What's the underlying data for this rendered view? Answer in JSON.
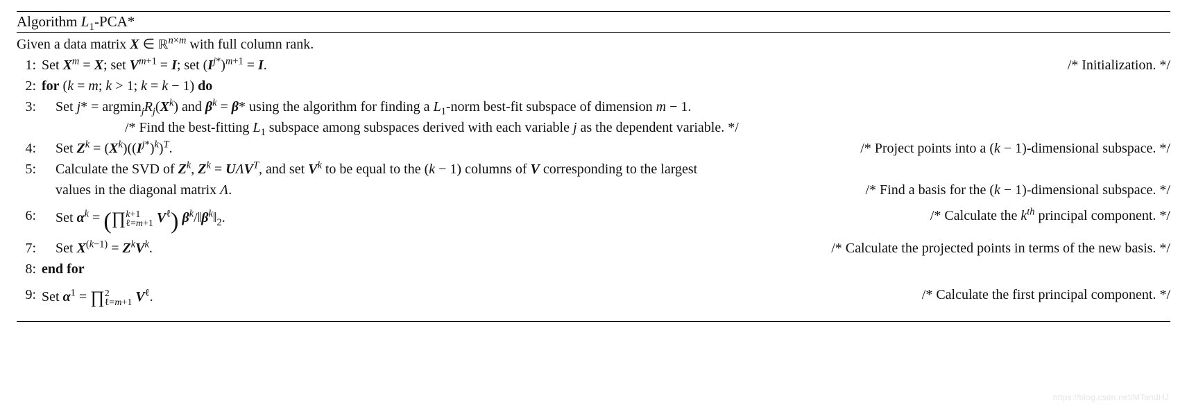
{
  "title_html": "Algorithm <span class='ital'>L</span><sub>1</sub>-PCA*",
  "given_html": "Given a data matrix <span class='bi'>X</span> ∈ <span class='dbl'>ℝ</span><sup><span class='ital'>n</span>×<span class='ital'>m</span></sup> with full column rank.",
  "steps": [
    {
      "no": "1:",
      "indent": 0,
      "tall": false,
      "left_html": "Set <span class='bi'>X</span><sup><span class='ital'>m</span></sup> = <span class='bi'>X</span>; set <span class='bi'>V</span><sup><span class='ital'>m</span>+1</sup> = <span class='bi'>I</span>; set (<span class='bi'>I</span><sup><span class='ital'>j</span>*</sup>)<sup><span class='ital'>m</span>+1</sup> = <span class='bi'>I</span>.",
      "right_html": "/* Initialization. */"
    },
    {
      "no": "2:",
      "indent": 0,
      "tall": false,
      "left_html": "<span class='bold'>for</span> (<span class='ital'>k</span> = <span class='ital'>m</span>; <span class='ital'>k</span> &gt; 1; <span class='ital'>k</span> = <span class='ital'>k</span> − 1) <span class='bold'>do</span>",
      "right_html": ""
    },
    {
      "no": "3:",
      "indent": 1,
      "tall": false,
      "left_html": "Set <span class='ital'>j</span>* = argmin<sub><span class='ital'>j</span></sub><span class='ital'>R</span><sub><span class='ital'>j</span></sub>(<span class='bi'>X</span><sup><span class='ital'>k</span></sup>) and <span class='bi'>β</span><sup><span class='ital'>k</span></sup> = <span class='bi'>β</span>* using the algorithm for finding a <span class='ital'>L</span><sub>1</sub>-norm best-fit subspace of dimension <span class='ital'>m</span> − 1.",
      "right_html": ""
    },
    {
      "no": "",
      "indent": 2,
      "tall": false,
      "left_html": "/* Find the best-fitting <span class='ital'>L</span><sub>1</sub> subspace among subspaces derived with each variable <span class='ital'>j</span> as the dependent variable. */",
      "right_html": ""
    },
    {
      "no": "4:",
      "indent": 1,
      "tall": false,
      "left_html": "Set <span class='bi'>Z</span><sup><span class='ital'>k</span></sup> = (<span class='bi'>X</span><sup><span class='ital'>k</span></sup>)((<span class='bi'>I</span><sup><span class='ital'>j</span>*</sup>)<sup><span class='ital'>k</span></sup>)<sup><span class='ital'>T</span></sup>.",
      "right_html": "/* Project points into a (<span class='ital'>k</span> − 1)-dimensional subspace. */"
    },
    {
      "no": "5:",
      "indent": 1,
      "tall": false,
      "left_html": "Calculate the SVD of <span class='bi'>Z</span><sup><span class='ital'>k</span></sup>, <span class='bi'>Z</span><sup><span class='ital'>k</span></sup> = <span class='bi'>U</span><span class='ital'>Λ</span><span class='bi'>V</span><sup><span class='ital'>T</span></sup>, and set <span class='bi'>V</span><sup><span class='ital'>k</span></sup> to be equal to the (<span class='ital'>k</span> − 1) columns of <span class='bi'>V</span> corresponding to the largest",
      "right_html": ""
    },
    {
      "no": "",
      "indent": 1,
      "tall": false,
      "left_html": "values in the diagonal matrix <span class='ital'>Λ</span>.",
      "right_html": "/* Find a basis for the (<span class='ital'>k</span> − 1)-dimensional subspace. */"
    },
    {
      "no": "6:",
      "indent": 1,
      "tall": true,
      "left_html": "Set <span class='bi'>α</span><sup><span class='ital'>k</span></sup> = <span class='bigparen'>(</span><span class='prod'>∏</span><span class='supsub'><span><span class='ital'>k</span>+1</span><br>ℓ=<span class='ital'>m</span>+1</span> <span class='bi'>V</span><sup>ℓ</sup><span class='bigparen'>)</span> <span class='bi'>β</span><sup><span class='ital'>k</span></sup>/‖<span class='bi'>β</span><sup><span class='ital'>k</span></sup>‖<sub>2</sub>.",
      "right_html": "/* Calculate the <span class='ital'>k</span><sup><span class='ital'>th</span></sup> principal component. */"
    },
    {
      "no": "7:",
      "indent": 1,
      "tall": false,
      "left_html": "Set <span class='bi'>X</span><sup>(<span class='ital'>k</span>−1)</sup> = <span class='bi'>Z</span><sup><span class='ital'>k</span></sup><span class='bi'>V</span><sup><span class='ital'>k</span></sup>.",
      "right_html": "/* Calculate the projected points in terms of the new basis. */"
    },
    {
      "no": "8:",
      "indent": 0,
      "tall": false,
      "left_html": "<span class='bold'>end for</span>",
      "right_html": ""
    },
    {
      "no": "9:",
      "indent": 0,
      "tall": true,
      "left_html": "Set <span class='bi'>α</span><sup>1</sup> = <span class='prod'>∏</span><span class='supsub'><span>2</span><br>ℓ=<span class='ital'>m</span>+1</span> <span class='bi'>V</span><sup>ℓ</sup>.",
      "right_html": "/* Calculate the first principal component. */"
    }
  ],
  "watermark": "https://blog.csdn.net/MTandHJ"
}
